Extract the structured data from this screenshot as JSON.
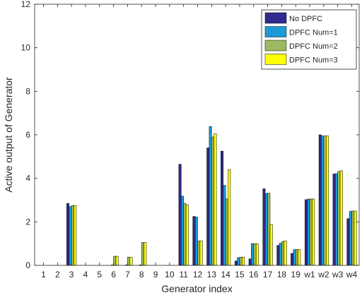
{
  "chart_data": {
    "type": "bar",
    "title": "",
    "xlabel": "Generator index",
    "ylabel": "Active output of Generator",
    "ylim": [
      0,
      12
    ],
    "yticks": [
      0,
      2,
      4,
      6,
      8,
      10,
      12
    ],
    "grid": false,
    "legend_position": "top-right",
    "categories": [
      "1",
      "2",
      "3",
      "4",
      "5",
      "6",
      "7",
      "8",
      "9",
      "10",
      "11",
      "12",
      "13",
      "14",
      "15",
      "16",
      "17",
      "18",
      "19",
      "w1",
      "w2",
      "w3",
      "w4"
    ],
    "series": [
      {
        "name": "No DPFC",
        "color": "#2e2c8e",
        "values": [
          0,
          0,
          2.85,
          0,
          0,
          0,
          0,
          0,
          0,
          0,
          4.65,
          2.25,
          5.4,
          5.25,
          0.2,
          0.3,
          3.52,
          0.92,
          0.55,
          3.02,
          6.0,
          4.2,
          2.15
        ]
      },
      {
        "name": "DPFC Num=1",
        "color": "#1d9ad6",
        "values": [
          0,
          0,
          2.7,
          0,
          0,
          0.02,
          0.02,
          0.02,
          0,
          0,
          3.18,
          2.22,
          6.38,
          3.68,
          0.35,
          1.0,
          3.3,
          1.02,
          0.72,
          3.05,
          5.95,
          4.22,
          2.48
        ]
      },
      {
        "name": "DPFC Num=2",
        "color": "#9cba5f",
        "values": [
          0,
          0,
          2.75,
          0,
          0,
          0.42,
          0.38,
          1.05,
          0,
          0,
          2.85,
          1.12,
          5.9,
          3.05,
          0.38,
          1.0,
          3.32,
          1.1,
          0.73,
          3.05,
          5.95,
          4.32,
          2.5
        ]
      },
      {
        "name": "DPFC Num=3",
        "color": "#ffff00",
        "values": [
          0,
          0,
          2.75,
          0,
          0,
          0.42,
          0.37,
          1.05,
          0,
          0,
          2.78,
          1.13,
          6.05,
          4.4,
          0.38,
          1.0,
          1.88,
          1.13,
          0.73,
          3.05,
          5.95,
          4.35,
          2.5
        ]
      }
    ]
  }
}
